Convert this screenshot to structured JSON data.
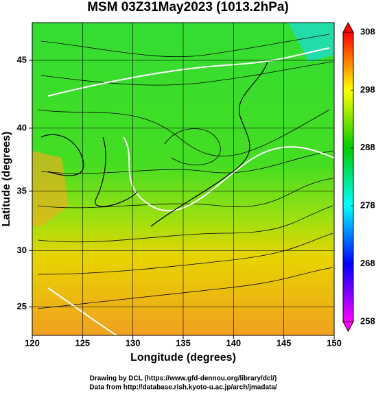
{
  "chart_data": {
    "type": "map",
    "title": "MSM 03Z31May2023 (1013.2hPa)",
    "x_label": "Longitude (degrees)",
    "y_label": "Latitude  (degrees)",
    "projection": "mercator",
    "xlim": [
      120,
      150
    ],
    "xticks": [
      120,
      125,
      130,
      135,
      140,
      145,
      150
    ],
    "ylim": [
      22.4,
      47.6
    ],
    "yticks": [
      25,
      30,
      35,
      40,
      45
    ],
    "grid": true,
    "colorbar": {
      "lim": [
        258,
        308
      ],
      "ticks": [
        258,
        268,
        278,
        288,
        298,
        308
      ],
      "colors": [
        "#ff00ff",
        "#0000ff",
        "#00ffff",
        "#00cc00",
        "#ffff00",
        "#ff0000"
      ]
    },
    "credits": [
      "Drawing by DCL (https://www.gfd-dennou.org/library/dcl/)",
      "Data from http://database.rish.kyoto-u.ac.jp/arch/jmadata/"
    ]
  }
}
